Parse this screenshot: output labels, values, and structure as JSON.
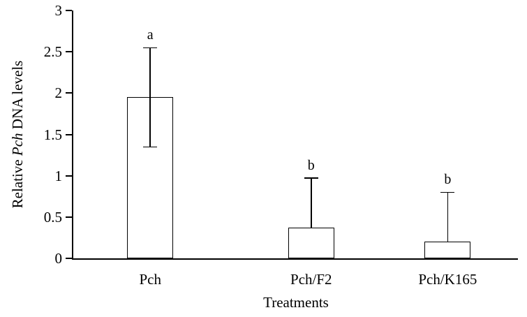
{
  "chart_data": {
    "type": "bar",
    "title": "",
    "xlabel": "Treatments",
    "ylabel": "Relative Pch DNA levels",
    "ylabel_parts": {
      "prefix": "Relative ",
      "italic": "Pch",
      "suffix": " DNA levels"
    },
    "categories": [
      "Pch",
      "Pch/F2",
      "Pch/K165"
    ],
    "values": [
      1.95,
      0.37,
      0.2
    ],
    "error_upper": [
      0.6,
      0.6,
      0.6
    ],
    "error_lower": [
      0.6,
      null,
      null
    ],
    "sig_letters": [
      "a",
      "b",
      "b"
    ],
    "ylim": [
      0,
      3
    ],
    "yticks": [
      0,
      0.5,
      1,
      1.5,
      2,
      2.5,
      3
    ],
    "grid": false,
    "legend": "none",
    "bar_fill": "#ffffff",
    "bar_border": "#000000"
  }
}
